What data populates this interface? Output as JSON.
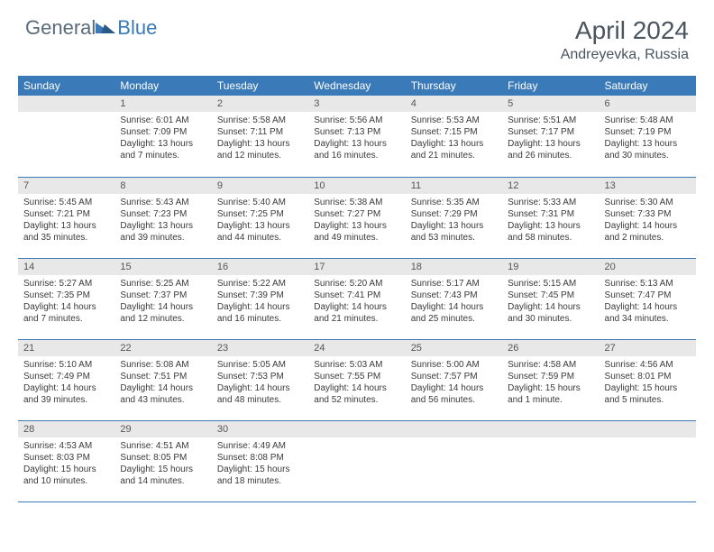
{
  "logo": {
    "text1": "General",
    "text2": "Blue",
    "icon_name": "triangle-logo-icon",
    "icon_color": "#3a7ab8"
  },
  "header": {
    "month_title": "April 2024",
    "location": "Andreyevka, Russia"
  },
  "calendar": {
    "day_headers": [
      "Sunday",
      "Monday",
      "Tuesday",
      "Wednesday",
      "Thursday",
      "Friday",
      "Saturday"
    ],
    "header_bg": "#3a7ab8",
    "header_fg": "#ffffff",
    "daynum_bg": "#e8e8e8",
    "row_border": "#3a7ab8",
    "text_color": "#3a3a3a",
    "weeks": [
      [
        {
          "day": "",
          "sunrise": "",
          "sunset": "",
          "daylight": ""
        },
        {
          "day": "1",
          "sunrise": "Sunrise: 6:01 AM",
          "sunset": "Sunset: 7:09 PM",
          "daylight": "Daylight: 13 hours and 7 minutes."
        },
        {
          "day": "2",
          "sunrise": "Sunrise: 5:58 AM",
          "sunset": "Sunset: 7:11 PM",
          "daylight": "Daylight: 13 hours and 12 minutes."
        },
        {
          "day": "3",
          "sunrise": "Sunrise: 5:56 AM",
          "sunset": "Sunset: 7:13 PM",
          "daylight": "Daylight: 13 hours and 16 minutes."
        },
        {
          "day": "4",
          "sunrise": "Sunrise: 5:53 AM",
          "sunset": "Sunset: 7:15 PM",
          "daylight": "Daylight: 13 hours and 21 minutes."
        },
        {
          "day": "5",
          "sunrise": "Sunrise: 5:51 AM",
          "sunset": "Sunset: 7:17 PM",
          "daylight": "Daylight: 13 hours and 26 minutes."
        },
        {
          "day": "6",
          "sunrise": "Sunrise: 5:48 AM",
          "sunset": "Sunset: 7:19 PM",
          "daylight": "Daylight: 13 hours and 30 minutes."
        }
      ],
      [
        {
          "day": "7",
          "sunrise": "Sunrise: 5:45 AM",
          "sunset": "Sunset: 7:21 PM",
          "daylight": "Daylight: 13 hours and 35 minutes."
        },
        {
          "day": "8",
          "sunrise": "Sunrise: 5:43 AM",
          "sunset": "Sunset: 7:23 PM",
          "daylight": "Daylight: 13 hours and 39 minutes."
        },
        {
          "day": "9",
          "sunrise": "Sunrise: 5:40 AM",
          "sunset": "Sunset: 7:25 PM",
          "daylight": "Daylight: 13 hours and 44 minutes."
        },
        {
          "day": "10",
          "sunrise": "Sunrise: 5:38 AM",
          "sunset": "Sunset: 7:27 PM",
          "daylight": "Daylight: 13 hours and 49 minutes."
        },
        {
          "day": "11",
          "sunrise": "Sunrise: 5:35 AM",
          "sunset": "Sunset: 7:29 PM",
          "daylight": "Daylight: 13 hours and 53 minutes."
        },
        {
          "day": "12",
          "sunrise": "Sunrise: 5:33 AM",
          "sunset": "Sunset: 7:31 PM",
          "daylight": "Daylight: 13 hours and 58 minutes."
        },
        {
          "day": "13",
          "sunrise": "Sunrise: 5:30 AM",
          "sunset": "Sunset: 7:33 PM",
          "daylight": "Daylight: 14 hours and 2 minutes."
        }
      ],
      [
        {
          "day": "14",
          "sunrise": "Sunrise: 5:27 AM",
          "sunset": "Sunset: 7:35 PM",
          "daylight": "Daylight: 14 hours and 7 minutes."
        },
        {
          "day": "15",
          "sunrise": "Sunrise: 5:25 AM",
          "sunset": "Sunset: 7:37 PM",
          "daylight": "Daylight: 14 hours and 12 minutes."
        },
        {
          "day": "16",
          "sunrise": "Sunrise: 5:22 AM",
          "sunset": "Sunset: 7:39 PM",
          "daylight": "Daylight: 14 hours and 16 minutes."
        },
        {
          "day": "17",
          "sunrise": "Sunrise: 5:20 AM",
          "sunset": "Sunset: 7:41 PM",
          "daylight": "Daylight: 14 hours and 21 minutes."
        },
        {
          "day": "18",
          "sunrise": "Sunrise: 5:17 AM",
          "sunset": "Sunset: 7:43 PM",
          "daylight": "Daylight: 14 hours and 25 minutes."
        },
        {
          "day": "19",
          "sunrise": "Sunrise: 5:15 AM",
          "sunset": "Sunset: 7:45 PM",
          "daylight": "Daylight: 14 hours and 30 minutes."
        },
        {
          "day": "20",
          "sunrise": "Sunrise: 5:13 AM",
          "sunset": "Sunset: 7:47 PM",
          "daylight": "Daylight: 14 hours and 34 minutes."
        }
      ],
      [
        {
          "day": "21",
          "sunrise": "Sunrise: 5:10 AM",
          "sunset": "Sunset: 7:49 PM",
          "daylight": "Daylight: 14 hours and 39 minutes."
        },
        {
          "day": "22",
          "sunrise": "Sunrise: 5:08 AM",
          "sunset": "Sunset: 7:51 PM",
          "daylight": "Daylight: 14 hours and 43 minutes."
        },
        {
          "day": "23",
          "sunrise": "Sunrise: 5:05 AM",
          "sunset": "Sunset: 7:53 PM",
          "daylight": "Daylight: 14 hours and 48 minutes."
        },
        {
          "day": "24",
          "sunrise": "Sunrise: 5:03 AM",
          "sunset": "Sunset: 7:55 PM",
          "daylight": "Daylight: 14 hours and 52 minutes."
        },
        {
          "day": "25",
          "sunrise": "Sunrise: 5:00 AM",
          "sunset": "Sunset: 7:57 PM",
          "daylight": "Daylight: 14 hours and 56 minutes."
        },
        {
          "day": "26",
          "sunrise": "Sunrise: 4:58 AM",
          "sunset": "Sunset: 7:59 PM",
          "daylight": "Daylight: 15 hours and 1 minute."
        },
        {
          "day": "27",
          "sunrise": "Sunrise: 4:56 AM",
          "sunset": "Sunset: 8:01 PM",
          "daylight": "Daylight: 15 hours and 5 minutes."
        }
      ],
      [
        {
          "day": "28",
          "sunrise": "Sunrise: 4:53 AM",
          "sunset": "Sunset: 8:03 PM",
          "daylight": "Daylight: 15 hours and 10 minutes."
        },
        {
          "day": "29",
          "sunrise": "Sunrise: 4:51 AM",
          "sunset": "Sunset: 8:05 PM",
          "daylight": "Daylight: 15 hours and 14 minutes."
        },
        {
          "day": "30",
          "sunrise": "Sunrise: 4:49 AM",
          "sunset": "Sunset: 8:08 PM",
          "daylight": "Daylight: 15 hours and 18 minutes."
        },
        {
          "day": "",
          "sunrise": "",
          "sunset": "",
          "daylight": ""
        },
        {
          "day": "",
          "sunrise": "",
          "sunset": "",
          "daylight": ""
        },
        {
          "day": "",
          "sunrise": "",
          "sunset": "",
          "daylight": ""
        },
        {
          "day": "",
          "sunrise": "",
          "sunset": "",
          "daylight": ""
        }
      ]
    ]
  }
}
